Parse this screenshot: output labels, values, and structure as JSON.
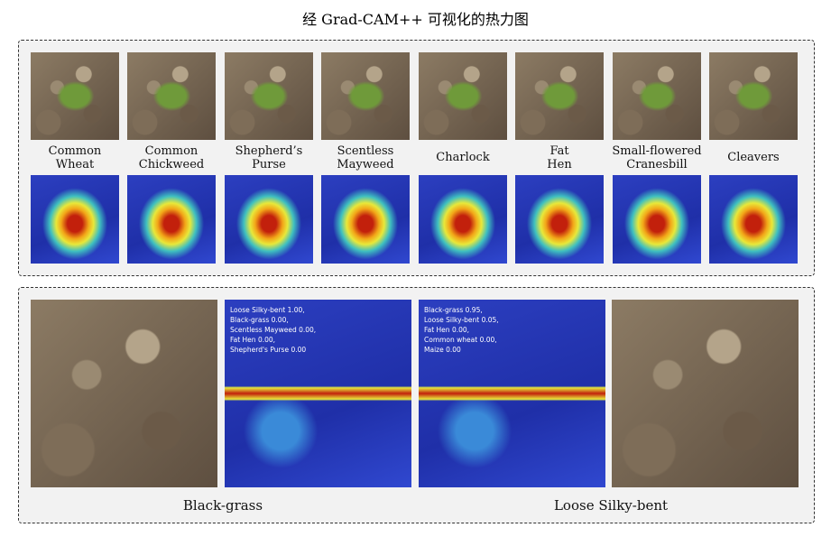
{
  "title": "经 Grad-CAM++ 可视化的热力图",
  "top_panel": {
    "labels": [
      [
        "Common",
        "Wheat"
      ],
      [
        "Common",
        "Chickweed"
      ],
      [
        "Shepherd’s",
        "Purse"
      ],
      [
        "Scentless",
        "Mayweed"
      ],
      [
        "Charlock"
      ],
      [
        "Fat",
        "Hen"
      ],
      [
        "Small-flowered",
        "Cranesbill"
      ],
      [
        "Cleavers"
      ]
    ]
  },
  "bottom_panel": {
    "heatmaps": [
      [
        "Loose Silky-bent 1.00,",
        "Black-grass 0.00,",
        "Scentless Mayweed 0.00,",
        "Fat Hen 0.00,",
        "Shepherd's Purse 0.00"
      ],
      [
        "Black-grass 0.95,",
        "Loose Silky-bent 0.05,",
        "Fat Hen 0.00,",
        "Common wheat 0.00,",
        "Maize 0.00"
      ]
    ],
    "captions": [
      "Black-grass",
      "Loose Silky-bent"
    ]
  }
}
